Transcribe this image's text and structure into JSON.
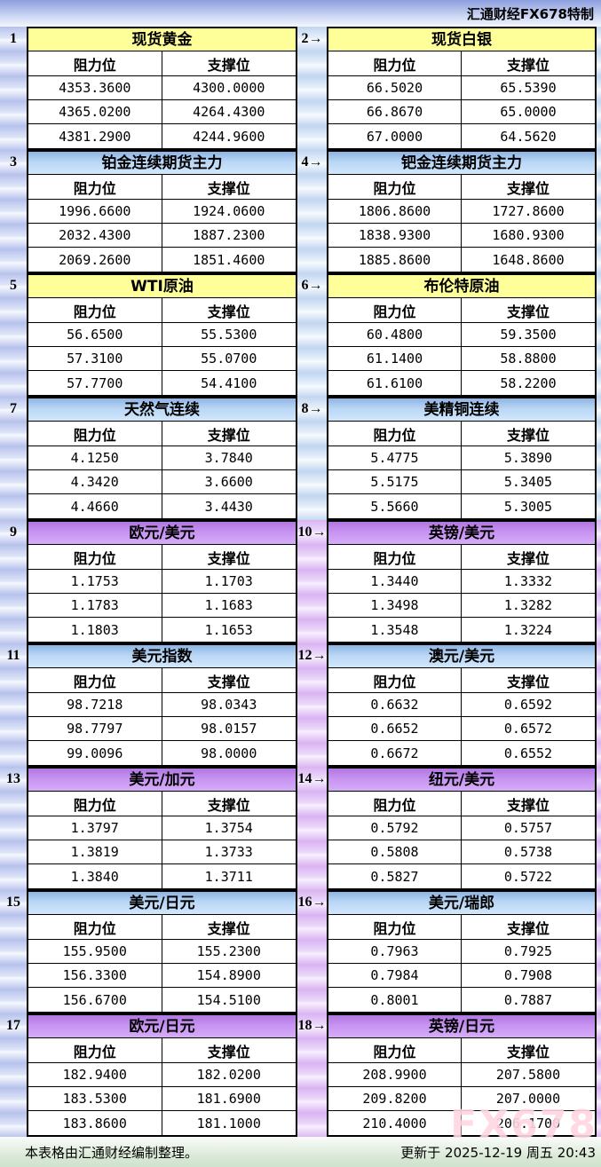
{
  "header": {
    "brand": "汇通财经FX678特制"
  },
  "labels": {
    "resistance": "阻力位",
    "support": "支撑位"
  },
  "footer": {
    "note": "本表格由汇通财经编制整理。",
    "updated": "更新于 2025-12-19 周五 20:43",
    "watermark": "FX678"
  },
  "colors": {
    "header_yellow": "#ffff9a",
    "header_blue": "#9fc0e8",
    "header_purple": "#c793f2",
    "band_lavender": "#b7c2ec",
    "band_blue": "#c2d6f0",
    "band_purple": "#d9b4f2",
    "footer_green": "#cfe2cd"
  },
  "tables": [
    {
      "num": "1",
      "title": "现货黄金",
      "theme": "yellow",
      "resistance": [
        "4353.3600",
        "4365.0200",
        "4381.2900"
      ],
      "support": [
        "4300.0000",
        "4264.4300",
        "4244.9600"
      ]
    },
    {
      "num": "2→",
      "title": "现货白银",
      "theme": "yellow",
      "resistance": [
        "66.5020",
        "66.8670",
        "67.0000"
      ],
      "support": [
        "65.5390",
        "65.0000",
        "64.5620"
      ]
    },
    {
      "num": "3",
      "title": "铂金连续期货主力",
      "theme": "blue",
      "resistance": [
        "1996.6600",
        "2032.4300",
        "2069.2600"
      ],
      "support": [
        "1924.0600",
        "1887.2300",
        "1851.4600"
      ]
    },
    {
      "num": "4→",
      "title": "钯金连续期货主力",
      "theme": "blue",
      "resistance": [
        "1806.8600",
        "1838.9300",
        "1885.8600"
      ],
      "support": [
        "1727.8600",
        "1680.9300",
        "1648.8600"
      ]
    },
    {
      "num": "5",
      "title": "WTI原油",
      "theme": "yellow",
      "resistance": [
        "56.6500",
        "57.3100",
        "57.7700"
      ],
      "support": [
        "55.5300",
        "55.0700",
        "54.4100"
      ]
    },
    {
      "num": "6→",
      "title": "布伦特原油",
      "theme": "yellow",
      "resistance": [
        "60.4800",
        "61.1400",
        "61.6100"
      ],
      "support": [
        "59.3500",
        "58.8800",
        "58.2200"
      ]
    },
    {
      "num": "7",
      "title": "天然气连续",
      "theme": "blue",
      "resistance": [
        "4.1250",
        "4.3420",
        "4.4660"
      ],
      "support": [
        "3.7840",
        "3.6600",
        "3.4430"
      ]
    },
    {
      "num": "8→",
      "title": "美精铜连续",
      "theme": "blue",
      "resistance": [
        "5.4775",
        "5.5175",
        "5.5660"
      ],
      "support": [
        "5.3890",
        "5.3405",
        "5.3005"
      ]
    },
    {
      "num": "9",
      "title": "欧元/美元",
      "theme": "purple",
      "resistance": [
        "1.1753",
        "1.1783",
        "1.1803"
      ],
      "support": [
        "1.1703",
        "1.1683",
        "1.1653"
      ]
    },
    {
      "num": "10→",
      "title": "英镑/美元",
      "theme": "purple",
      "resistance": [
        "1.3440",
        "1.3498",
        "1.3548"
      ],
      "support": [
        "1.3332",
        "1.3282",
        "1.3224"
      ]
    },
    {
      "num": "11",
      "title": "美元指数",
      "theme": "blue",
      "resistance": [
        "98.7218",
        "98.7797",
        "99.0096"
      ],
      "support": [
        "98.0343",
        "98.0157",
        "98.0000"
      ]
    },
    {
      "num": "12→",
      "title": "澳元/美元",
      "theme": "blue",
      "resistance": [
        "0.6632",
        "0.6652",
        "0.6672"
      ],
      "support": [
        "0.6592",
        "0.6572",
        "0.6552"
      ]
    },
    {
      "num": "13",
      "title": "美元/加元",
      "theme": "purple",
      "resistance": [
        "1.3797",
        "1.3819",
        "1.3840"
      ],
      "support": [
        "1.3754",
        "1.3733",
        "1.3711"
      ]
    },
    {
      "num": "14→",
      "title": "纽元/美元",
      "theme": "purple",
      "resistance": [
        "0.5792",
        "0.5808",
        "0.5827"
      ],
      "support": [
        "0.5757",
        "0.5738",
        "0.5722"
      ]
    },
    {
      "num": "15",
      "title": "美元/日元",
      "theme": "blue",
      "resistance": [
        "155.9500",
        "156.3300",
        "156.6700"
      ],
      "support": [
        "155.2300",
        "154.8900",
        "154.5100"
      ]
    },
    {
      "num": "16→",
      "title": "美元/瑞郎",
      "theme": "blue",
      "resistance": [
        "0.7963",
        "0.7984",
        "0.8001"
      ],
      "support": [
        "0.7925",
        "0.7908",
        "0.7887"
      ]
    },
    {
      "num": "17",
      "title": "欧元/日元",
      "theme": "purple",
      "resistance": [
        "182.9400",
        "183.5300",
        "183.8600"
      ],
      "support": [
        "182.0200",
        "181.6900",
        "181.1000"
      ]
    },
    {
      "num": "18→",
      "title": "英镑/日元",
      "theme": "purple",
      "resistance": [
        "208.9900",
        "209.8200",
        "210.4000"
      ],
      "support": [
        "207.5800",
        "207.0000",
        "206.1700"
      ]
    }
  ]
}
